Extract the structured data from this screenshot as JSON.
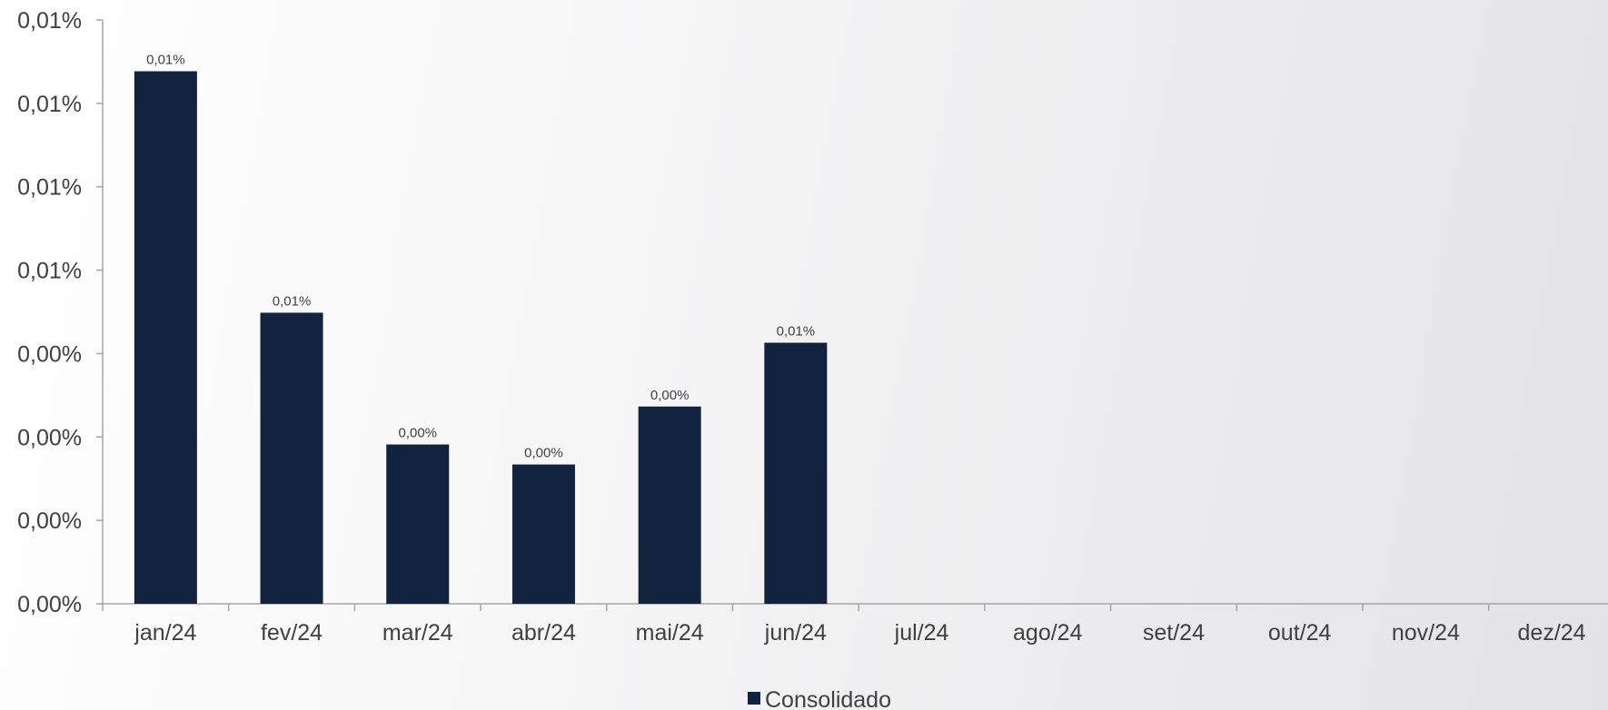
{
  "chart_data": {
    "type": "bar",
    "title": "",
    "xlabel": "",
    "ylabel": "",
    "categories": [
      "jan/24",
      "fev/24",
      "mar/24",
      "abr/24",
      "mai/24",
      "jun/24",
      "jul/24",
      "ago/24",
      "set/24",
      "out/24",
      "nov/24",
      "dez/24"
    ],
    "series": [
      {
        "name": "Consolidado",
        "color": "#12233f",
        "values": [
          0.01277,
          0.00698,
          0.00382,
          0.00334,
          0.00473,
          0.00626,
          null,
          null,
          null,
          null,
          null,
          null
        ],
        "data_labels": [
          "0,01%",
          "0,01%",
          "0,00%",
          "0,00%",
          "0,00%",
          "0,01%",
          "",
          "",
          "",
          "",
          "",
          ""
        ]
      }
    ],
    "ylim": [
      0,
      0.014
    ],
    "yticks": [
      0,
      0.002,
      0.004,
      0.006,
      0.008,
      0.01,
      0.012,
      0.014
    ],
    "ytick_labels": [
      "0,00%",
      "0,00%",
      "0,00%",
      "0,00%",
      "0,01%",
      "0,01%",
      "0,01%",
      "0,01%"
    ],
    "unit": "%",
    "grid": false,
    "legend": {
      "position": "bottom-center",
      "entries": [
        "Consolidado"
      ]
    },
    "colors": {
      "bar": "#12233f",
      "axis": "#a6a6a6",
      "text": "#404040"
    }
  }
}
